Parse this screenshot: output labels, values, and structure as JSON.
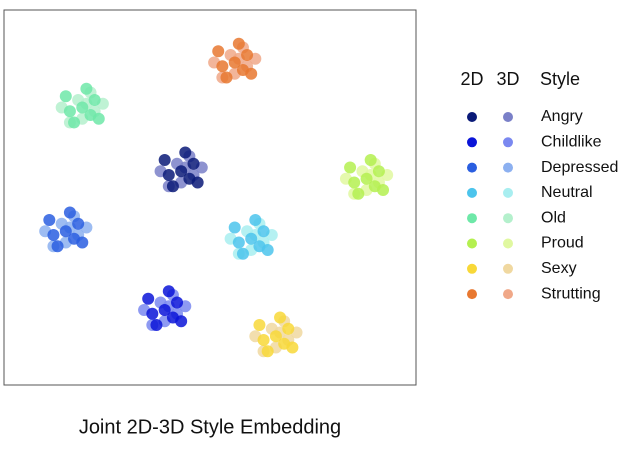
{
  "chart_data": {
    "type": "scatter",
    "title": "Joint 2D-3D Style Embedding",
    "xlim": [
      0,
      100
    ],
    "ylim": [
      0,
      100
    ],
    "legend_headers": [
      "2D",
      "3D",
      "Style"
    ],
    "styles": [
      {
        "name": "Angry",
        "color_2d": "#0a1a78",
        "color_3d": "#7a80c8",
        "2d": {
          "x": [
            39,
            41,
            43,
            46,
            47,
            40,
            44,
            45
          ],
          "y": [
            60,
            53,
            57,
            59,
            54,
            56,
            62,
            55
          ]
        },
        "3d": {
          "x": [
            38,
            42,
            45,
            48,
            43,
            40,
            46,
            44
          ],
          "y": [
            57,
            59,
            61,
            58,
            54,
            53,
            56,
            58
          ]
        }
      },
      {
        "name": "Childlike",
        "color_2d": "#0a14d8",
        "color_3d": "#7a88f0",
        "2d": {
          "x": [
            35,
            37,
            39,
            42,
            43,
            36,
            40,
            41
          ],
          "y": [
            23,
            16,
            20,
            22,
            17,
            19,
            25,
            18
          ]
        },
        "3d": {
          "x": [
            34,
            38,
            41,
            44,
            39,
            36,
            42,
            40
          ],
          "y": [
            20,
            22,
            24,
            21,
            17,
            16,
            19,
            21
          ]
        }
      },
      {
        "name": "Depressed",
        "color_2d": "#2a5ee0",
        "color_3d": "#8cb0f0",
        "2d": {
          "x": [
            11,
            13,
            15,
            18,
            19,
            12,
            16,
            17
          ],
          "y": [
            44,
            37,
            41,
            43,
            38,
            40,
            46,
            39
          ]
        },
        "3d": {
          "x": [
            10,
            14,
            17,
            20,
            15,
            12,
            18,
            16
          ],
          "y": [
            41,
            43,
            45,
            42,
            38,
            37,
            40,
            42
          ]
        }
      },
      {
        "name": "Neutral",
        "color_2d": "#4cc4ec",
        "color_3d": "#a8eef0",
        "2d": {
          "x": [
            56,
            58,
            60,
            63,
            64,
            57,
            61,
            62
          ],
          "y": [
            42,
            35,
            39,
            41,
            36,
            38,
            44,
            37
          ]
        },
        "3d": {
          "x": [
            55,
            59,
            62,
            65,
            60,
            57,
            63,
            61
          ],
          "y": [
            39,
            41,
            43,
            40,
            36,
            35,
            38,
            40
          ]
        }
      },
      {
        "name": "Old",
        "color_2d": "#6ee8a8",
        "color_3d": "#b4f0cc",
        "2d": {
          "x": [
            15,
            17,
            19,
            22,
            23,
            16,
            20,
            21
          ],
          "y": [
            77,
            70,
            74,
            76,
            71,
            73,
            79,
            72
          ]
        },
        "3d": {
          "x": [
            14,
            18,
            21,
            24,
            19,
            16,
            22,
            20
          ],
          "y": [
            74,
            76,
            78,
            75,
            71,
            70,
            73,
            75
          ]
        }
      },
      {
        "name": "Proud",
        "color_2d": "#b4f050",
        "color_3d": "#e0f8a0",
        "2d": {
          "x": [
            84,
            86,
            88,
            91,
            92,
            85,
            89,
            90
          ],
          "y": [
            58,
            51,
            55,
            57,
            52,
            54,
            60,
            53
          ]
        },
        "3d": {
          "x": [
            83,
            87,
            90,
            93,
            88,
            85,
            91,
            89
          ],
          "y": [
            55,
            57,
            59,
            56,
            52,
            51,
            54,
            56
          ]
        }
      },
      {
        "name": "Sexy",
        "color_2d": "#f8d838",
        "color_3d": "#f0d8a0",
        "2d": {
          "x": [
            62,
            64,
            66,
            69,
            70,
            63,
            67,
            68
          ],
          "y": [
            16,
            9,
            13,
            15,
            10,
            12,
            18,
            11
          ]
        },
        "3d": {
          "x": [
            61,
            65,
            68,
            71,
            66,
            63,
            69,
            67
          ],
          "y": [
            13,
            15,
            17,
            14,
            10,
            9,
            12,
            14
          ]
        }
      },
      {
        "name": "Strutting",
        "color_2d": "#e87830",
        "color_3d": "#f0a888",
        "2d": {
          "x": [
            52,
            54,
            56,
            59,
            60,
            53,
            57,
            58
          ],
          "y": [
            89,
            82,
            86,
            88,
            83,
            85,
            91,
            84
          ]
        },
        "3d": {
          "x": [
            51,
            55,
            58,
            61,
            56,
            53,
            59,
            57
          ],
          "y": [
            86,
            88,
            90,
            87,
            83,
            82,
            85,
            87
          ]
        }
      }
    ]
  }
}
